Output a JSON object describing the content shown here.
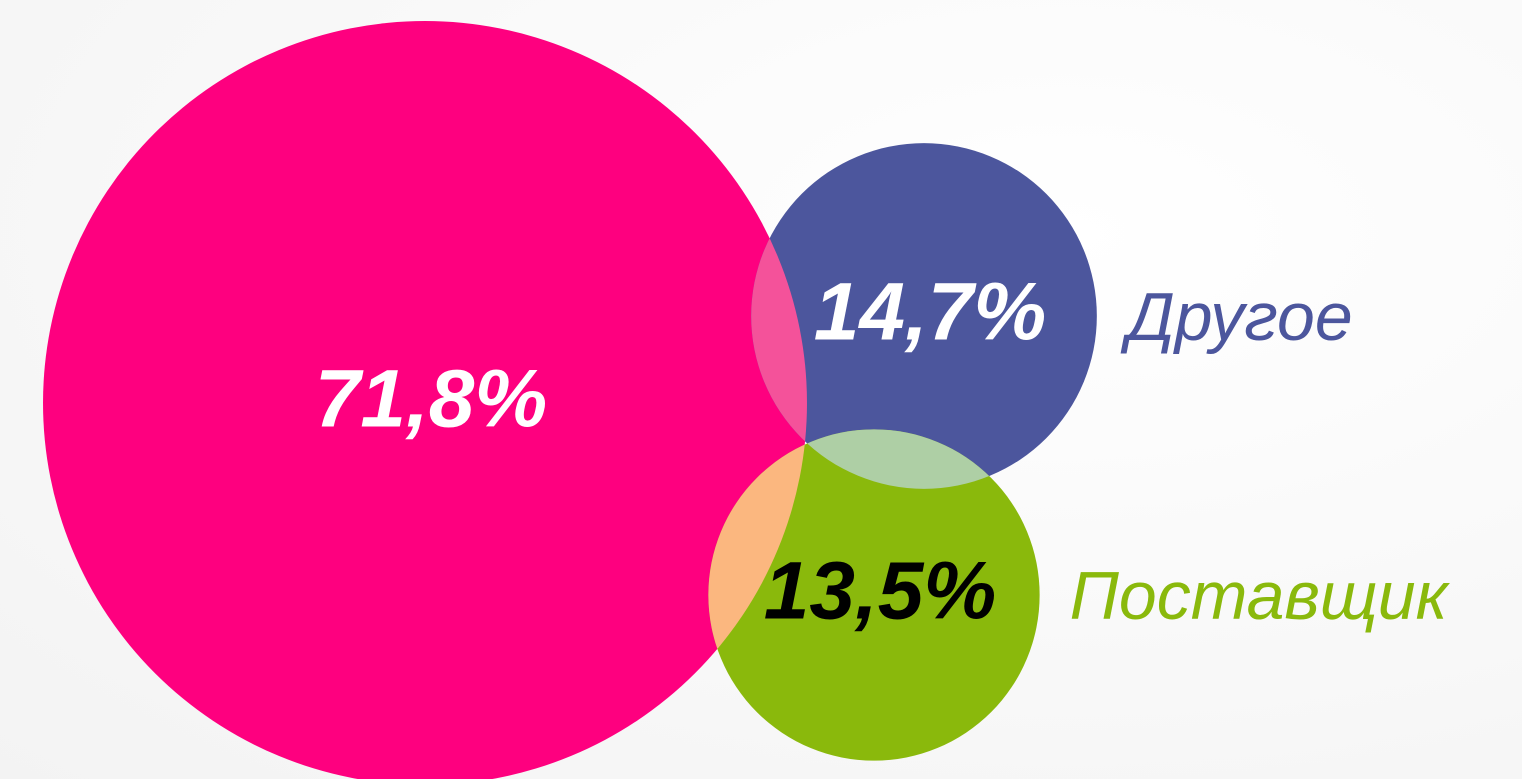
{
  "chart_data": {
    "type": "bubble",
    "categories": [
      null,
      "Другое",
      "Поставщик"
    ],
    "values": [
      71.8,
      14.7,
      13.5
    ],
    "value_labels": [
      "71,8%",
      "14,7%",
      "13,5%"
    ],
    "colors": [
      "#fe007f",
      "#4c569d",
      "#8ab90c"
    ]
  }
}
